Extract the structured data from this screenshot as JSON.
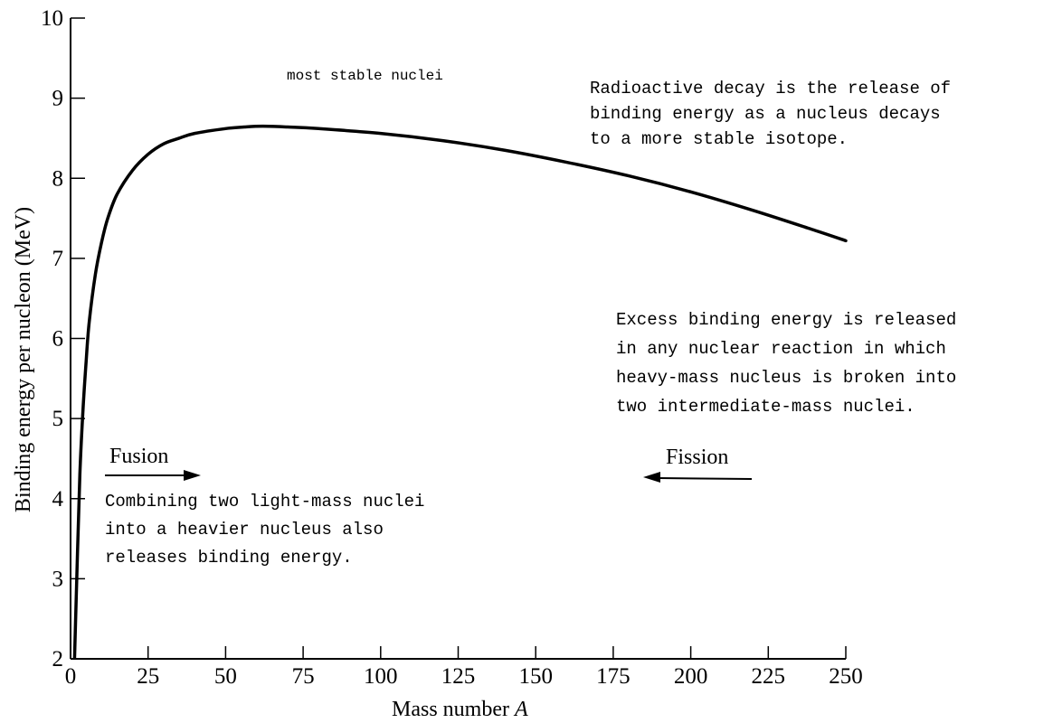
{
  "chart_data": {
    "type": "line",
    "xlabel": "Mass number",
    "xlabel_var": "A",
    "ylabel": "Binding energy per nucleon (MeV)",
    "xlim": [
      0,
      250
    ],
    "ylim": [
      2,
      10
    ],
    "x_ticks": [
      0,
      25,
      50,
      75,
      100,
      125,
      150,
      175,
      200,
      225,
      250
    ],
    "y_ticks": [
      2,
      3,
      4,
      5,
      6,
      7,
      8,
      9,
      10
    ],
    "grid": false,
    "series": [
      {
        "x": [
          1,
          2,
          3,
          4,
          5,
          6,
          8,
          10,
          12,
          15,
          20,
          25,
          30,
          35,
          40,
          50,
          56,
          62,
          70,
          80,
          100,
          120,
          140,
          160,
          180,
          200,
          220,
          240,
          250
        ],
        "y": [
          1.6,
          3.0,
          4.3,
          5.1,
          5.7,
          6.2,
          6.8,
          7.2,
          7.5,
          7.8,
          8.1,
          8.3,
          8.43,
          8.5,
          8.56,
          8.62,
          8.64,
          8.65,
          8.64,
          8.62,
          8.56,
          8.47,
          8.35,
          8.2,
          8.03,
          7.83,
          7.6,
          7.35,
          7.22
        ]
      }
    ],
    "annotations": [
      {
        "id": "stable",
        "text": "most stable nuclei"
      },
      {
        "id": "decay",
        "lines": [
          "Radioactive decay is the release of",
          "binding energy as a nucleus decays",
          "to a more stable isotope."
        ]
      },
      {
        "id": "fission_note",
        "lines": [
          "Excess binding energy is released",
          "in any nuclear reaction in which",
          "heavy-mass nucleus is broken into",
          "two intermediate-mass nuclei."
        ]
      },
      {
        "id": "fusion_note",
        "lines": [
          "Combining two light-mass nuclei",
          "into a heavier nucleus also",
          "releases binding energy."
        ]
      }
    ],
    "arrows": [
      {
        "label": "Fusion",
        "direction": "right"
      },
      {
        "label": "Fission",
        "direction": "left"
      }
    ]
  }
}
